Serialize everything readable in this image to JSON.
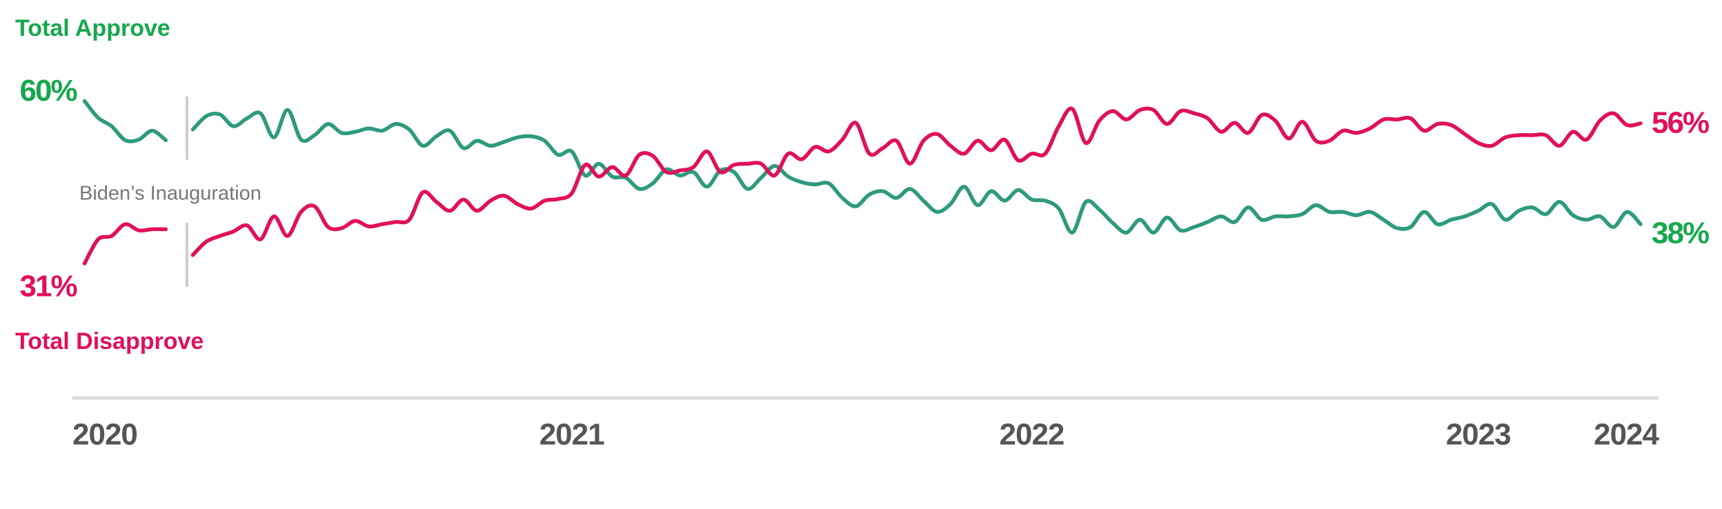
{
  "chart_data": {
    "type": "line",
    "annotation": "Biden’s Inauguration",
    "categories": [
      "2020",
      null,
      null,
      null,
      null,
      null,
      null,
      null,
      null,
      null,
      null,
      null,
      null,
      null,
      null,
      null,
      null,
      null,
      null,
      null,
      null,
      null,
      null,
      null,
      null,
      null,
      null,
      null,
      null,
      null,
      null,
      null,
      null,
      null,
      null,
      null,
      "2021",
      null,
      null,
      null,
      null,
      null,
      null,
      null,
      null,
      null,
      null,
      null,
      null,
      null,
      null,
      null,
      null,
      null,
      null,
      null,
      null,
      null,
      null,
      null,
      null,
      null,
      null,
      null,
      null,
      null,
      null,
      null,
      null,
      null,
      "2022",
      null,
      null,
      null,
      null,
      null,
      null,
      null,
      null,
      null,
      null,
      null,
      null,
      null,
      null,
      null,
      null,
      null,
      null,
      null,
      null,
      null,
      null,
      null,
      null,
      null,
      null,
      null,
      null,
      null,
      null,
      null,
      null,
      "2023",
      null,
      null,
      null,
      null,
      null,
      null,
      null,
      null,
      null,
      null,
      null,
      "2024"
    ],
    "ylim": [
      28,
      66
    ],
    "series": [
      {
        "name": "Total Approve",
        "color": "#2e9a7e",
        "values": [
          60,
          57,
          55.5,
          53,
          53.1,
          54.7,
          53,
          null,
          54.9,
          57.3,
          57.6,
          55.5,
          56.9,
          57.8,
          53.5,
          58.4,
          53.1,
          53.9,
          55.9,
          54.3,
          54.5,
          55.1,
          54.7,
          55.9,
          54.9,
          52,
          53.7,
          54.7,
          51.6,
          52.9,
          52,
          52.7,
          53.5,
          53.7,
          52.9,
          50.4,
          51,
          46.7,
          48.8,
          46.5,
          46.3,
          44.3,
          45.3,
          47.8,
          46.7,
          47.3,
          44.7,
          47.6,
          47.3,
          44.3,
          46.3,
          48.4,
          46.5,
          45.5,
          45.1,
          45.3,
          42.7,
          41.2,
          43.3,
          43.9,
          42.7,
          44.3,
          42.2,
          40.2,
          41.6,
          44.7,
          41.4,
          43.9,
          42.2,
          44.1,
          42.4,
          42.2,
          40.8,
          36.5,
          42,
          40.6,
          38.2,
          36.5,
          38.8,
          36.5,
          39.2,
          36.9,
          37.5,
          38.4,
          39.4,
          38.4,
          41,
          38.8,
          39.4,
          39.4,
          39.8,
          41.4,
          40.2,
          40.2,
          39.6,
          40.2,
          38.8,
          37.3,
          37.5,
          40.2,
          38,
          38.8,
          39.4,
          40.4,
          41.6,
          38.8,
          40.4,
          41,
          39.8,
          42,
          39.6,
          38.8,
          39.4,
          37.5,
          40.2,
          38
        ],
        "value_labels": [
          "60%",
          null,
          null,
          null,
          null,
          null,
          null,
          null,
          null,
          null,
          null,
          null,
          null,
          null,
          null,
          null,
          null,
          null,
          null,
          null,
          null,
          null,
          null,
          null,
          null,
          null,
          null,
          null,
          null,
          null,
          null,
          null,
          null,
          null,
          null,
          null,
          null,
          null,
          null,
          null,
          null,
          null,
          null,
          null,
          null,
          null,
          null,
          null,
          null,
          null,
          null,
          null,
          null,
          null,
          null,
          null,
          null,
          null,
          null,
          null,
          null,
          null,
          null,
          null,
          null,
          null,
          null,
          null,
          null,
          null,
          null,
          null,
          null,
          null,
          null,
          null,
          null,
          null,
          null,
          null,
          null,
          null,
          null,
          null,
          null,
          null,
          null,
          null,
          null,
          null,
          null,
          null,
          null,
          null,
          null,
          null,
          null,
          null,
          null,
          null,
          null,
          null,
          null,
          null,
          null,
          null,
          null,
          null,
          null,
          null,
          null,
          null,
          null,
          null,
          null,
          "38%"
        ]
      },
      {
        "name": "Total Disapprove",
        "color": "#e0105a",
        "values": [
          31,
          35.3,
          35.9,
          38,
          36.9,
          37.1,
          37.1,
          null,
          32.5,
          34.9,
          35.9,
          36.7,
          37.8,
          35.3,
          39.4,
          35.9,
          40.2,
          41.2,
          37.5,
          37.3,
          38.6,
          37.6,
          38,
          38.4,
          38.8,
          43.7,
          42,
          40.4,
          42.4,
          40.4,
          42.2,
          43.1,
          41.6,
          40.8,
          42.2,
          42.5,
          43.5,
          48.6,
          46.5,
          48.2,
          46.7,
          50.4,
          50.2,
          47.3,
          47.6,
          48.2,
          51,
          47.3,
          48.6,
          48.8,
          48.8,
          46.7,
          50.6,
          49.6,
          51.8,
          51,
          53.1,
          56.1,
          50.6,
          51.6,
          52.9,
          48.8,
          52.9,
          54.1,
          52,
          50.6,
          52.9,
          51.2,
          53.1,
          49.4,
          50.6,
          50.6,
          55.5,
          58.6,
          52.5,
          56.5,
          58.2,
          56.7,
          58.4,
          58.4,
          55.9,
          58.2,
          57.8,
          56.9,
          54.5,
          56.1,
          54.3,
          57.5,
          56.5,
          53.3,
          56.3,
          52.9,
          52.9,
          54.7,
          54.3,
          55.1,
          56.7,
          56.7,
          56.9,
          54.7,
          55.9,
          55.7,
          54.1,
          52.5,
          52,
          53.5,
          53.9,
          53.9,
          53.9,
          52,
          54.5,
          53.1,
          56.5,
          57.8,
          55.7,
          56
        ],
        "value_labels": [
          "31%",
          null,
          null,
          null,
          null,
          null,
          null,
          null,
          null,
          null,
          null,
          null,
          null,
          null,
          null,
          null,
          null,
          null,
          null,
          null,
          null,
          null,
          null,
          null,
          null,
          null,
          null,
          null,
          null,
          null,
          null,
          null,
          null,
          null,
          null,
          null,
          null,
          null,
          null,
          null,
          null,
          null,
          null,
          null,
          null,
          null,
          null,
          null,
          null,
          null,
          null,
          null,
          null,
          null,
          null,
          null,
          null,
          null,
          null,
          null,
          null,
          null,
          null,
          null,
          null,
          null,
          null,
          null,
          null,
          null,
          null,
          null,
          null,
          null,
          null,
          null,
          null,
          null,
          null,
          null,
          null,
          null,
          null,
          null,
          null,
          null,
          null,
          null,
          null,
          null,
          null,
          null,
          null,
          null,
          null,
          null,
          null,
          null,
          null,
          null,
          null,
          null,
          null,
          null,
          null,
          null,
          null,
          null,
          null,
          null,
          null,
          null,
          null,
          null,
          null,
          "56%"
        ]
      }
    ]
  }
}
